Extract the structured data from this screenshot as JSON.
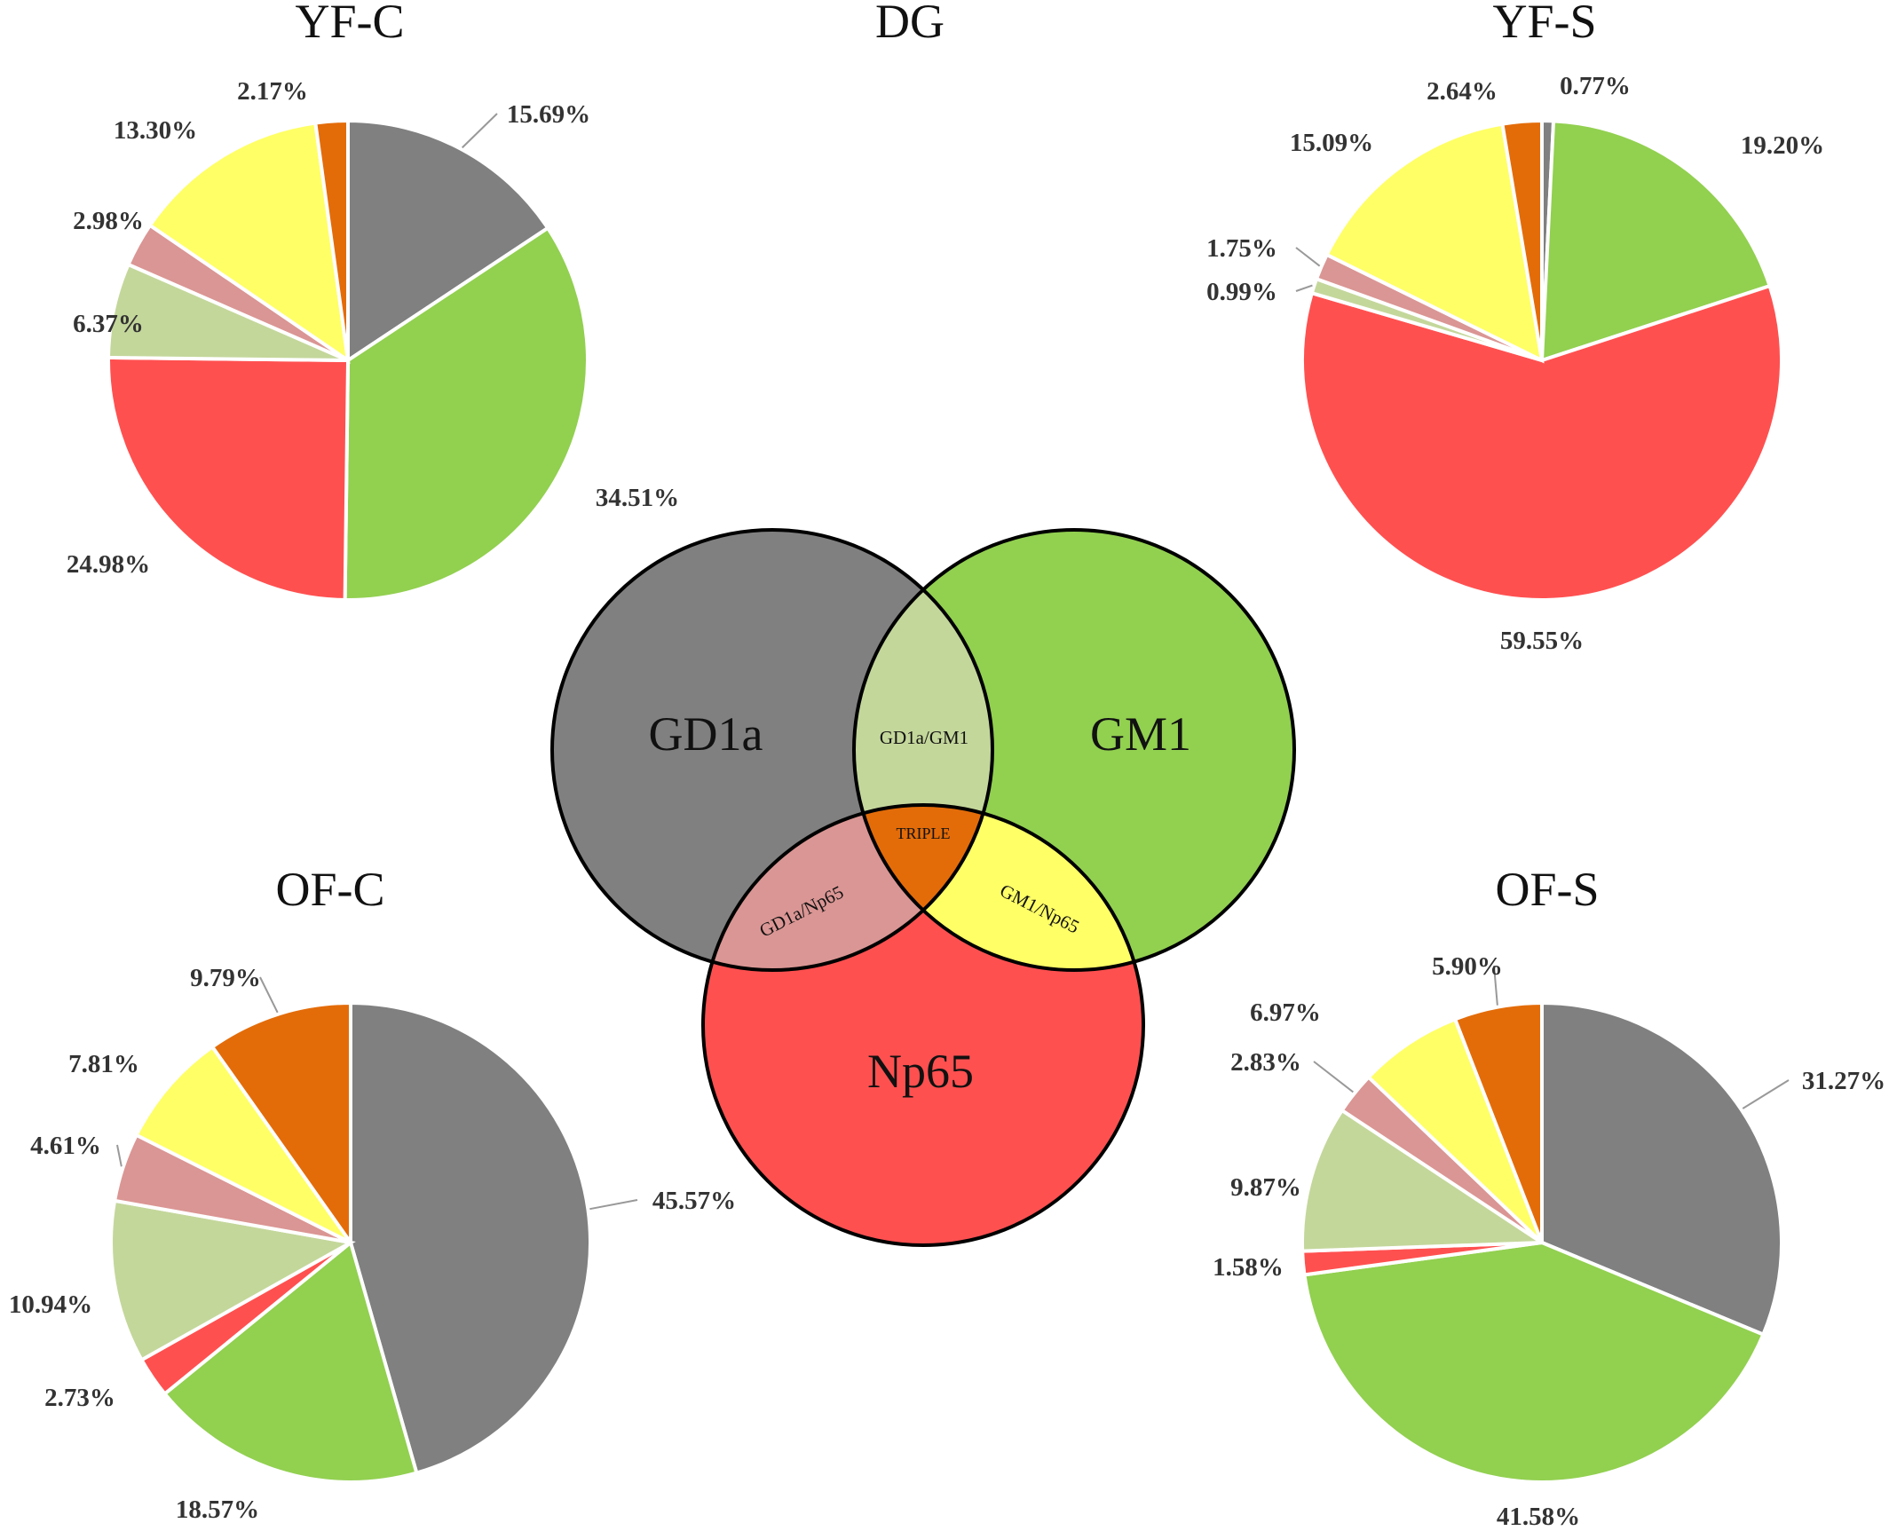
{
  "figure_title": "DG",
  "categories": [
    "GD1a",
    "GM1",
    "Np65",
    "GD1a/GM1",
    "GD1a/Np65",
    "GM1/Np65",
    "TRIPLE"
  ],
  "colors": {
    "GD1a": "#808080",
    "GM1": "#92d050",
    "Np65": "#ff5050",
    "GD1a/GM1": "#c4d79b",
    "GD1a/Np65": "#da9694",
    "GM1/Np65": "#ffff66",
    "TRIPLE": "#e36c09"
  },
  "venn": {
    "labels": {
      "gd1a": "GD1a",
      "gm1": "GM1",
      "np65": "Np65",
      "gd1a_gm1": "GD1a/GM1",
      "gd1a_np65": "GD1a/Np65",
      "gm1_np65": "GM1/Np65",
      "triple": "TRIPLE"
    }
  },
  "chart_data": [
    {
      "type": "pie",
      "title": "YF-C",
      "slices": [
        {
          "category": "GD1a",
          "value": 15.69,
          "label": "15.69%"
        },
        {
          "category": "GM1",
          "value": 34.51,
          "label": "34.51%"
        },
        {
          "category": "Np65",
          "value": 24.98,
          "label": "24.98%"
        },
        {
          "category": "GD1a/GM1",
          "value": 6.37,
          "label": "6.37%"
        },
        {
          "category": "GD1a/Np65",
          "value": 2.98,
          "label": "2.98%"
        },
        {
          "category": "GM1/Np65",
          "value": 13.3,
          "label": "13.30%"
        },
        {
          "category": "TRIPLE",
          "value": 2.17,
          "label": "2.17%"
        }
      ]
    },
    {
      "type": "pie",
      "title": "YF-S",
      "slices": [
        {
          "category": "GD1a",
          "value": 0.77,
          "label": "0.77%"
        },
        {
          "category": "GM1",
          "value": 19.2,
          "label": "19.20%"
        },
        {
          "category": "Np65",
          "value": 59.55,
          "label": "59.55%"
        },
        {
          "category": "GD1a/GM1",
          "value": 0.99,
          "label": "0.99%"
        },
        {
          "category": "GD1a/Np65",
          "value": 1.75,
          "label": "1.75%"
        },
        {
          "category": "GM1/Np65",
          "value": 15.09,
          "label": "15.09%"
        },
        {
          "category": "TRIPLE",
          "value": 2.64,
          "label": "2.64%"
        }
      ]
    },
    {
      "type": "pie",
      "title": "OF-C",
      "slices": [
        {
          "category": "GD1a",
          "value": 45.57,
          "label": "45.57%"
        },
        {
          "category": "GM1",
          "value": 18.57,
          "label": "18.57%"
        },
        {
          "category": "Np65",
          "value": 2.73,
          "label": "2.73%"
        },
        {
          "category": "GD1a/GM1",
          "value": 10.94,
          "label": "10.94%"
        },
        {
          "category": "GD1a/Np65",
          "value": 4.61,
          "label": "4.61%"
        },
        {
          "category": "GM1/Np65",
          "value": 7.81,
          "label": "7.81%"
        },
        {
          "category": "TRIPLE",
          "value": 9.79,
          "label": "9.79%"
        }
      ]
    },
    {
      "type": "pie",
      "title": "OF-S",
      "slices": [
        {
          "category": "GD1a",
          "value": 31.27,
          "label": "31.27%"
        },
        {
          "category": "GM1",
          "value": 41.58,
          "label": "41.58%"
        },
        {
          "category": "Np65",
          "value": 1.58,
          "label": "1.58%"
        },
        {
          "category": "GD1a/GM1",
          "value": 9.87,
          "label": "9.87%"
        },
        {
          "category": "GD1a/Np65",
          "value": 2.83,
          "label": "2.83%"
        },
        {
          "category": "GM1/Np65",
          "value": 6.97,
          "label": "6.97%"
        },
        {
          "category": "TRIPLE",
          "value": 5.9,
          "label": "5.90%"
        }
      ]
    }
  ]
}
